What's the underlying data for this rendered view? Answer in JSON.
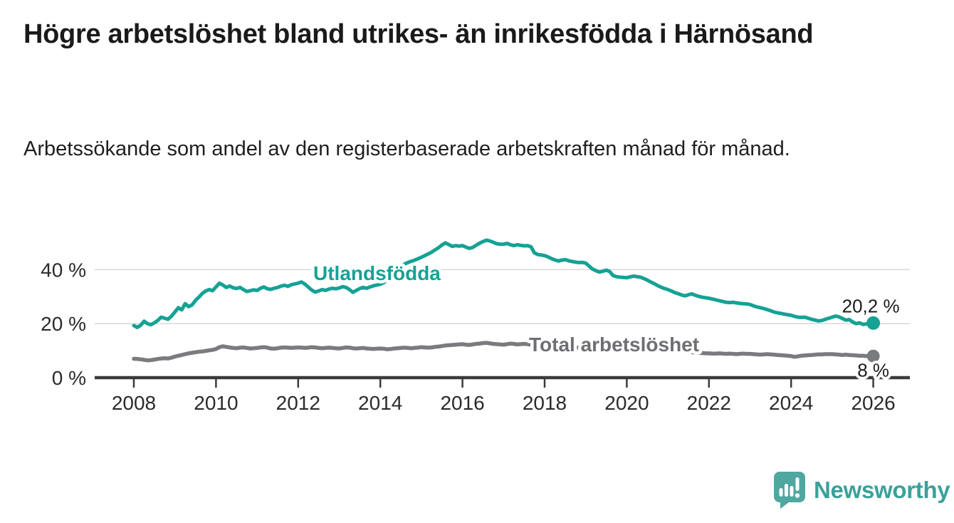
{
  "header": {
    "title": "Högre arbetslöshet bland utrikes- än inrikesfödda i Härnösand",
    "subtitle": "Arbetssökande som andel av den registerbaserade arbetskraften månad för månad."
  },
  "chart_data": {
    "type": "line",
    "x_unit": "decimal_year_monthly",
    "x_start": 2008.0,
    "x_step_months": 1,
    "axis": {
      "x_ticks": [
        2008,
        2010,
        2012,
        2014,
        2016,
        2018,
        2020,
        2022,
        2024,
        2026
      ],
      "y_ticks": [
        {
          "value": 0,
          "label": "0 %"
        },
        {
          "value": 20,
          "label": "20 %"
        },
        {
          "value": 40,
          "label": "40 %"
        }
      ],
      "ylim": [
        0,
        55
      ],
      "grid": "horizontal-only",
      "legend_position": "inline-labels"
    },
    "series": [
      {
        "name": "Utlandsfödda",
        "color": "#15a295",
        "end_label": "20,2 %",
        "values": [
          19.3,
          18.6,
          19.4,
          20.9,
          20.0,
          19.6,
          20.3,
          21.2,
          22.4,
          22.0,
          21.6,
          22.8,
          24.3,
          25.9,
          25.1,
          27.4,
          26.3,
          26.9,
          28.6,
          29.8,
          31.2,
          32.1,
          32.6,
          32.2,
          33.6,
          35.0,
          34.3,
          33.4,
          33.9,
          33.3,
          33.0,
          33.4,
          32.6,
          31.9,
          32.2,
          32.5,
          32.3,
          33.1,
          33.6,
          32.9,
          32.7,
          33.1,
          33.4,
          33.9,
          34.2,
          33.8,
          34.4,
          34.7,
          35.0,
          35.4,
          34.6,
          33.5,
          32.4,
          31.7,
          32.1,
          32.6,
          32.3,
          32.8,
          33.1,
          32.9,
          33.2,
          33.7,
          33.4,
          32.6,
          31.6,
          32.3,
          33.0,
          33.4,
          33.1,
          33.6,
          34.0,
          34.3,
          34.6,
          35.2,
          36.1,
          37.4,
          38.9,
          40.3,
          41.2,
          42.0,
          42.6,
          43.1,
          43.5,
          44.0,
          44.6,
          45.2,
          45.8,
          46.5,
          47.3,
          48.1,
          49.1,
          49.9,
          49.3,
          48.6,
          48.9,
          48.7,
          48.9,
          48.3,
          47.9,
          48.2,
          49.0,
          49.8,
          50.4,
          50.9,
          50.6,
          50.1,
          49.6,
          49.4,
          49.4,
          49.7,
          49.2,
          48.9,
          49.2,
          49.0,
          48.8,
          48.9,
          48.5,
          46.2,
          45.6,
          45.4,
          45.2,
          44.7,
          44.1,
          43.6,
          43.2,
          43.5,
          43.7,
          43.3,
          43.0,
          42.8,
          42.6,
          42.7,
          42.4,
          41.3,
          40.2,
          39.6,
          39.1,
          39.4,
          39.8,
          39.3,
          37.8,
          37.4,
          37.2,
          37.1,
          37.0,
          37.3,
          37.6,
          37.4,
          37.2,
          36.7,
          36.1,
          35.4,
          34.8,
          34.1,
          33.5,
          33.0,
          32.6,
          32.1,
          31.5,
          31.1,
          30.6,
          30.3,
          30.7,
          31.0,
          30.5,
          30.1,
          29.8,
          29.6,
          29.4,
          29.1,
          28.8,
          28.5,
          28.2,
          27.9,
          27.8,
          27.9,
          27.7,
          27.5,
          27.4,
          27.3,
          27.1,
          26.6,
          26.2,
          25.9,
          25.6,
          25.2,
          24.8,
          24.3,
          24.0,
          23.8,
          23.5,
          23.3,
          23.1,
          22.7,
          22.4,
          22.3,
          22.4,
          22.0,
          21.6,
          21.3,
          21.0,
          21.2,
          21.6,
          22.0,
          22.4,
          22.8,
          22.5,
          21.9,
          21.3,
          21.5,
          20.6,
          20.0,
          20.3,
          19.7,
          19.9,
          20.0,
          20.2
        ]
      },
      {
        "name": "Total arbetslöshet",
        "color": "#7a7b7e",
        "end_label": "8 %",
        "values": [
          7.0,
          6.9,
          6.8,
          6.6,
          6.4,
          6.5,
          6.7,
          6.9,
          7.1,
          7.2,
          7.1,
          7.4,
          7.8,
          8.1,
          8.4,
          8.7,
          9.0,
          9.2,
          9.4,
          9.6,
          9.7,
          9.9,
          10.1,
          10.3,
          10.6,
          11.3,
          11.6,
          11.4,
          11.2,
          11.0,
          10.9,
          11.1,
          11.2,
          11.0,
          10.8,
          10.9,
          11.0,
          11.2,
          11.3,
          11.1,
          10.8,
          10.7,
          10.9,
          11.1,
          11.2,
          11.1,
          11.0,
          11.1,
          11.2,
          11.1,
          11.0,
          11.1,
          11.3,
          11.2,
          11.0,
          10.9,
          11.0,
          11.1,
          11.0,
          10.9,
          10.8,
          11.0,
          11.2,
          11.1,
          10.9,
          10.8,
          10.9,
          11.0,
          10.8,
          10.7,
          10.6,
          10.7,
          10.8,
          10.7,
          10.5,
          10.6,
          10.8,
          10.9,
          11.0,
          11.1,
          11.0,
          10.9,
          11.0,
          11.1,
          11.3,
          11.2,
          11.1,
          11.2,
          11.4,
          11.5,
          11.7,
          11.9,
          12.0,
          12.1,
          12.2,
          12.3,
          12.4,
          12.2,
          12.1,
          12.3,
          12.5,
          12.6,
          12.8,
          12.9,
          12.7,
          12.5,
          12.4,
          12.3,
          12.2,
          12.4,
          12.6,
          12.5,
          12.3,
          12.4,
          12.5,
          12.4,
          12.2,
          12.1,
          12.0,
          11.9,
          11.8,
          11.7,
          11.6,
          11.5,
          11.4,
          11.5,
          11.6,
          11.5,
          11.3,
          11.2,
          11.1,
          11.0,
          11.1,
          11.2,
          11.3,
          11.2,
          11.0,
          10.9,
          11.0,
          11.1,
          11.0,
          10.9,
          10.8,
          10.9,
          11.0,
          11.2,
          11.5,
          11.7,
          11.8,
          11.7,
          11.5,
          11.3,
          11.1,
          10.9,
          10.7,
          10.5,
          10.4,
          10.3,
          10.1,
          9.9,
          9.8,
          9.6,
          9.5,
          9.4,
          9.3,
          9.2,
          9.1,
          9.0,
          9.0,
          8.9,
          8.9,
          9.0,
          8.9,
          8.8,
          8.9,
          8.8,
          8.7,
          8.8,
          8.9,
          8.8,
          8.8,
          8.7,
          8.6,
          8.5,
          8.6,
          8.7,
          8.6,
          8.5,
          8.4,
          8.3,
          8.2,
          8.1,
          8.0,
          7.7,
          7.9,
          8.1,
          8.2,
          8.3,
          8.4,
          8.5,
          8.6,
          8.6,
          8.7,
          8.7,
          8.7,
          8.6,
          8.5,
          8.4,
          8.5,
          8.4,
          8.3,
          8.2,
          8.1,
          8.1,
          8.0,
          8.0,
          8.0
        ]
      }
    ]
  },
  "branding": {
    "logo_text": "Newsworthy",
    "logo_icon": "speech-bubble-bar-chart-icon",
    "brand_color": "#3aa19a"
  },
  "colors": {
    "utlandsfodda_line": "#15a295",
    "total_line": "#7a7b7e",
    "grid": "#d9d9d9",
    "axis": "#3b3b3b",
    "text": "#1a1a1a"
  }
}
